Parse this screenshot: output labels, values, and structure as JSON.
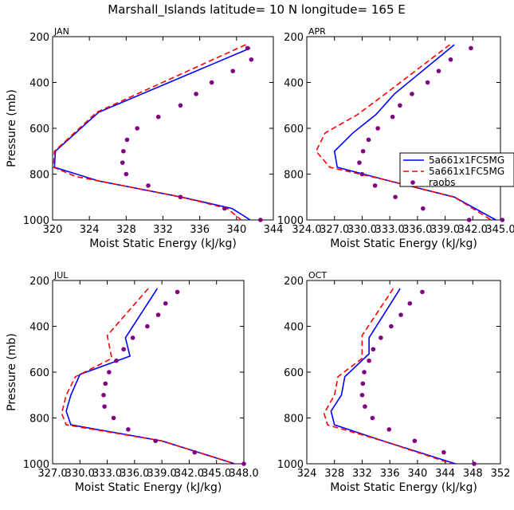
{
  "title": "Marshall_Islands  latitude= 10 N longitude= 165 E",
  "colors": {
    "model1": "#0000ff",
    "model2": "#ff0000",
    "raobs": "#800080",
    "frame": "#000000"
  },
  "legend": {
    "entries": [
      {
        "label": "5a661x1FC5MG",
        "style": "solid",
        "color": "#0000ff"
      },
      {
        "label": "5a661x1FC5MG",
        "style": "dashed",
        "color": "#ff0000"
      },
      {
        "label": "raobs",
        "style": "dot",
        "color": "#800080"
      }
    ]
  },
  "chart_data": [
    {
      "type": "line",
      "panel": "JAN",
      "xlabel": "Moist Static Energy (kJ/kg)",
      "ylabel": "Pressure (mb)",
      "xlim": [
        320,
        344
      ],
      "ylim": [
        1000,
        200
      ],
      "xticks": [
        320,
        324,
        328,
        332,
        336,
        340,
        344
      ],
      "xtick_labels": [
        "320",
        "324",
        "328",
        "332",
        "336",
        "340",
        "344"
      ],
      "yticks": [
        200,
        400,
        600,
        800,
        1000
      ],
      "ytick_labels": [
        "200",
        "400",
        "600",
        "800",
        "1000"
      ],
      "series": [
        {
          "name": "5a661x1FC5MG",
          "style": "solid",
          "color": "#0000ff",
          "x": [
            341.5,
            325.0,
            320.3,
            320.2,
            325.0,
            334.0,
            339.5,
            341.5
          ],
          "y": [
            250,
            530,
            700,
            770,
            830,
            900,
            950,
            1000
          ]
        },
        {
          "name": "5a661x1FC5MG",
          "style": "dashed",
          "color": "#ff0000",
          "x": [
            341.0,
            324.8,
            320.2,
            320.1,
            322.5,
            334.0,
            339.0,
            340.5
          ],
          "y": [
            235,
            530,
            700,
            770,
            810,
            900,
            950,
            1000
          ]
        },
        {
          "name": "raobs",
          "style": "dot",
          "color": "#800080",
          "x": [
            341.2,
            341.6,
            339.6,
            337.3,
            335.6,
            333.9,
            331.5,
            329.2,
            328.1,
            327.7,
            327.6,
            328.0,
            330.4,
            333.9,
            338.7,
            342.6
          ],
          "y": [
            250,
            300,
            350,
            400,
            450,
            500,
            550,
            600,
            650,
            700,
            750,
            800,
            850,
            900,
            950,
            1000
          ]
        }
      ]
    },
    {
      "type": "line",
      "panel": "APR",
      "xlabel": "Moist Static Energy (kJ/kg)",
      "ylabel": "Pressure (mb)",
      "xlim": [
        324.0,
        345.0
      ],
      "ylim": [
        1000,
        200
      ],
      "xticks": [
        324.0,
        327.0,
        330.0,
        333.0,
        336.0,
        339.0,
        342.0,
        345.0
      ],
      "xtick_labels": [
        "324.0",
        "327.0",
        "330.0",
        "333.0",
        "336.0",
        "339.0",
        "342.0",
        "345.0"
      ],
      "yticks": [
        200,
        400,
        600,
        800,
        1000
      ],
      "ytick_labels": [
        "200",
        "400",
        "600",
        "800",
        "1000"
      ],
      "series": [
        {
          "name": "5a661x1FC5MG",
          "style": "solid",
          "color": "#0000ff",
          "x": [
            340.0,
            333.5,
            331.5,
            329.0,
            327.0,
            327.3,
            333.0,
            340.0,
            344.5
          ],
          "y": [
            235,
            450,
            540,
            620,
            700,
            770,
            830,
            900,
            1000
          ]
        },
        {
          "name": "5a661x1FC5MG",
          "style": "dashed",
          "color": "#ff0000",
          "x": [
            339.5,
            332.5,
            329.5,
            326.0,
            325.0,
            326.5,
            332.0,
            340.0,
            344.0
          ],
          "y": [
            235,
            450,
            540,
            620,
            700,
            770,
            820,
            900,
            1000
          ]
        },
        {
          "name": "raobs",
          "style": "dot",
          "color": "#800080",
          "x": [
            341.8,
            339.6,
            338.3,
            337.1,
            335.4,
            334.1,
            333.3,
            331.7,
            330.7,
            330.1,
            329.7,
            330.0,
            331.4,
            333.6,
            336.6,
            341.6,
            345.2
          ],
          "y": [
            250,
            300,
            350,
            400,
            450,
            500,
            550,
            600,
            650,
            700,
            750,
            800,
            850,
            900,
            950,
            1000,
            1000
          ]
        }
      ]
    },
    {
      "type": "line",
      "panel": "JUL",
      "xlabel": "Moist Static Energy (kJ/kg)",
      "ylabel": "Pressure (mb)",
      "xlim": [
        327.0,
        348.0
      ],
      "ylim": [
        1000,
        200
      ],
      "xticks": [
        327.0,
        330.0,
        333.0,
        336.0,
        339.0,
        342.0,
        345.0,
        348.0
      ],
      "xtick_labels": [
        "327.0",
        "330.0",
        "333.0",
        "336.0",
        "339.0",
        "342.0",
        "345.0",
        "348.0"
      ],
      "yticks": [
        200,
        400,
        600,
        800,
        1000
      ],
      "ytick_labels": [
        "200",
        "400",
        "600",
        "800",
        "1000"
      ],
      "series": [
        {
          "name": "5a661x1FC5MG",
          "style": "solid",
          "color": "#0000ff",
          "x": [
            338.5,
            335.0,
            335.5,
            330.0,
            329.0,
            328.5,
            329.0,
            339.0,
            347.0
          ],
          "y": [
            235,
            450,
            530,
            610,
            700,
            770,
            830,
            900,
            1000
          ]
        },
        {
          "name": "5a661x1FC5MG",
          "style": "dashed",
          "color": "#ff0000",
          "x": [
            337.5,
            333.0,
            333.5,
            329.5,
            328.5,
            328.0,
            328.5,
            339.0,
            347.0
          ],
          "y": [
            235,
            440,
            540,
            620,
            700,
            780,
            830,
            900,
            1000
          ]
        },
        {
          "name": "raobs",
          "style": "dot",
          "color": "#800080",
          "x": [
            340.7,
            339.4,
            338.6,
            337.4,
            335.8,
            334.8,
            334.0,
            333.2,
            332.8,
            332.6,
            332.7,
            333.7,
            335.3,
            338.3,
            342.6,
            348.0
          ],
          "y": [
            250,
            300,
            350,
            400,
            450,
            500,
            550,
            600,
            650,
            700,
            750,
            800,
            850,
            900,
            950,
            1000
          ]
        }
      ]
    },
    {
      "type": "line",
      "panel": "OCT",
      "xlabel": "Moist Static Energy (kJ/kg)",
      "ylabel": "Pressure (mb)",
      "xlim": [
        324,
        352
      ],
      "ylim": [
        1000,
        200
      ],
      "xticks": [
        324,
        328,
        332,
        336,
        340,
        344,
        348,
        352
      ],
      "xtick_labels": [
        "324",
        "328",
        "332",
        "336",
        "340",
        "344",
        "348",
        "352"
      ],
      "yticks": [
        200,
        400,
        600,
        800,
        1000
      ],
      "ytick_labels": [
        "200",
        "400",
        "600",
        "800",
        "1000"
      ],
      "series": [
        {
          "name": "5a661x1FC5MG",
          "style": "solid",
          "color": "#0000ff",
          "x": [
            337.5,
            333.0,
            333.0,
            329.5,
            329.0,
            327.5,
            328.0,
            335.0,
            345.5
          ],
          "y": [
            235,
            450,
            520,
            620,
            700,
            770,
            830,
            900,
            1000
          ]
        },
        {
          "name": "5a661x1FC5MG",
          "style": "dashed",
          "color": "#ff0000",
          "x": [
            336.5,
            332.0,
            332.0,
            328.5,
            328.0,
            326.5,
            327.0,
            335.0,
            345.0
          ],
          "y": [
            235,
            440,
            540,
            620,
            700,
            780,
            830,
            900,
            1000
          ]
        },
        {
          "name": "raobs",
          "style": "dot",
          "color": "#800080",
          "x": [
            340.7,
            338.9,
            337.6,
            336.2,
            334.7,
            333.6,
            333.0,
            332.3,
            332.1,
            332.0,
            332.4,
            333.5,
            335.9,
            339.6,
            343.8,
            348.2
          ],
          "y": [
            250,
            300,
            350,
            400,
            450,
            500,
            550,
            600,
            650,
            700,
            750,
            800,
            850,
            900,
            950,
            1000
          ]
        }
      ]
    }
  ]
}
